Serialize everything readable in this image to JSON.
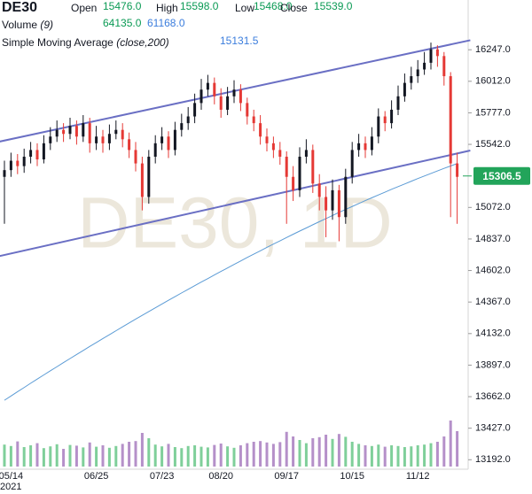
{
  "chart_data": {
    "type": "candlestick",
    "title": "DE30",
    "header": {
      "open_label": "Open",
      "open": "15476.0",
      "high_label": "High",
      "high": "15598.0",
      "low_label": "Low",
      "low": "15468.0",
      "close_label": "Close",
      "close": "15539.0",
      "volume_label": "Volume",
      "volume_params": "(9)",
      "volume_value_1": "64135.0",
      "volume_value_2": "61168.0",
      "sma_label": "Simple Moving Average",
      "sma_params": "(close,200)",
      "sma_value": "15131.5"
    },
    "watermark": "DE30, 1D",
    "year_label": "2021",
    "categories": [
      null,
      "05/14",
      null,
      null,
      null,
      null,
      null,
      null,
      null,
      null,
      null,
      null,
      null,
      null,
      "06/25",
      null,
      null,
      null,
      null,
      null,
      null,
      null,
      null,
      null,
      "07/23",
      null,
      null,
      null,
      null,
      null,
      null,
      null,
      null,
      "08/20",
      null,
      null,
      null,
      null,
      null,
      null,
      null,
      null,
      null,
      "09/17",
      null,
      null,
      null,
      null,
      null,
      null,
      null,
      null,
      null,
      "10/15",
      null,
      null,
      null,
      null,
      null,
      null,
      null,
      null,
      null,
      "11/12",
      null,
      null,
      null,
      null,
      null,
      null
    ],
    "open": [
      15300,
      15350,
      15420,
      15380,
      15450,
      15500,
      15430,
      15550,
      15600,
      15650,
      15620,
      15680,
      15600,
      15700,
      15550,
      15600,
      15550,
      15620,
      15650,
      15580,
      15500,
      15400,
      15150,
      15450,
      15550,
      15600,
      15500,
      15650,
      15700,
      15750,
      15850,
      15950,
      16000,
      15900,
      15800,
      15900,
      15950,
      15850,
      15750,
      15700,
      15600,
      15550,
      15500,
      15450,
      15300,
      15200,
      15450,
      15500,
      15250,
      15150,
      15050,
      15200,
      15000,
      15300,
      15500,
      15550,
      15500,
      15600,
      15750,
      15700,
      15800,
      15900,
      16000,
      16050,
      16100,
      16150,
      16250,
      16200,
      16050,
      15400
    ],
    "high": [
      15420,
      15480,
      15470,
      15510,
      15560,
      15550,
      15610,
      15670,
      15720,
      15700,
      15740,
      15720,
      15760,
      15740,
      15680,
      15650,
      15690,
      15720,
      15700,
      15630,
      15560,
      15450,
      15500,
      15610,
      15670,
      15640,
      15710,
      15770,
      15820,
      15920,
      16030,
      16060,
      16040,
      15960,
      15970,
      16020,
      15990,
      15890,
      15800,
      15760,
      15660,
      15600,
      15560,
      15490,
      15380,
      15520,
      15580,
      15540,
      15320,
      15230,
      15280,
      15240,
      15360,
      15560,
      15620,
      15600,
      15670,
      15810,
      15790,
      15870,
      15980,
      16070,
      16120,
      16170,
      16230,
      16300,
      16280,
      16230,
      16080,
      15480
    ],
    "low": [
      14950,
      15300,
      15320,
      15330,
      15400,
      15380,
      15400,
      15500,
      15560,
      15560,
      15580,
      15540,
      15560,
      15480,
      15500,
      15480,
      15500,
      15580,
      15520,
      15440,
      15340,
      15050,
      15100,
      15400,
      15500,
      15440,
      15460,
      15600,
      15650,
      15700,
      15800,
      15900,
      15840,
      15740,
      15760,
      15850,
      15790,
      15690,
      15640,
      15540,
      15490,
      15440,
      15390,
      14950,
      15120,
      15150,
      15400,
      15180,
      15050,
      14850,
      14980,
      14820,
      14950,
      15250,
      15450,
      15440,
      15460,
      15550,
      15640,
      15660,
      15760,
      15860,
      15950,
      16000,
      16060,
      16100,
      16120,
      15980,
      15000,
      14950
    ],
    "close": [
      15350,
      15420,
      15380,
      15450,
      15500,
      15430,
      15550,
      15600,
      15650,
      15620,
      15680,
      15600,
      15700,
      15550,
      15600,
      15550,
      15620,
      15650,
      15580,
      15500,
      15400,
      15150,
      15450,
      15550,
      15600,
      15500,
      15650,
      15700,
      15750,
      15850,
      15950,
      16000,
      15900,
      15800,
      15900,
      15950,
      15850,
      15750,
      15700,
      15600,
      15550,
      15500,
      15450,
      15300,
      15200,
      15450,
      15500,
      15250,
      15150,
      15050,
      15200,
      15000,
      15300,
      15500,
      15550,
      15500,
      15600,
      15750,
      15700,
      15800,
      15900,
      16000,
      16050,
      16100,
      16150,
      16250,
      16200,
      16050,
      15400,
      15300
    ],
    "up_color": "#131722",
    "down_color": "#e53935",
    "sma": {
      "color": "#5b9bd5",
      "values": [
        13635,
        13667,
        13699,
        13730,
        13762,
        13793,
        13824,
        13855,
        13885,
        13916,
        13946,
        13976,
        14006,
        14036,
        14065,
        14095,
        14124,
        14153,
        14182,
        14211,
        14240,
        14268,
        14296,
        14324,
        14352,
        14380,
        14407,
        14435,
        14462,
        14489,
        14516,
        14542,
        14569,
        14595,
        14621,
        14647,
        14673,
        14699,
        14724,
        14749,
        14774,
        14799,
        14823,
        14848,
        14872,
        14896,
        14919,
        14943,
        14966,
        14989,
        15012,
        15035,
        15057,
        15079,
        15101,
        15123,
        15144,
        15165,
        15186,
        15207,
        15227,
        15247,
        15267,
        15287,
        15306,
        15325,
        15344,
        15363,
        15381,
        15399
      ]
    },
    "volume": {
      "up_color": "#7fcf9a",
      "down_color": "#b590c9",
      "vlim": [
        0,
        150000
      ],
      "values": [
        62000,
        58000,
        71000,
        55000,
        60000,
        66000,
        52000,
        57000,
        63000,
        50000,
        61000,
        59000,
        54000,
        68000,
        56000,
        60000,
        53000,
        58000,
        64000,
        70000,
        72000,
        95000,
        80000,
        62000,
        57000,
        64000,
        55000,
        52000,
        58000,
        60000,
        56000,
        54000,
        61000,
        65000,
        57000,
        53000,
        60000,
        66000,
        70000,
        72000,
        68000,
        64000,
        69000,
        98000,
        85000,
        75000,
        66000,
        80000,
        83000,
        90000,
        78000,
        92000,
        84000,
        70000,
        64000,
        60000,
        58000,
        62000,
        56000,
        60000,
        58000,
        55000,
        57000,
        60000,
        62000,
        66000,
        70000,
        85000,
        130000,
        100000
      ]
    },
    "trendlines": {
      "color": "#6a6fc4",
      "lines": [
        {
          "start_index": -1,
          "start": 15560,
          "end_index": 71,
          "end": 16318
        },
        {
          "start_index": -1,
          "start": 14707,
          "end_index": 71,
          "end": 15496
        }
      ]
    },
    "last_price": 15306.5,
    "last_price_color": "#22a45a",
    "ylim": [
      13128,
      16400
    ],
    "yticks": [
      {
        "value": 13192,
        "label": "13192.0"
      },
      {
        "value": 13427,
        "label": "13427.0"
      },
      {
        "value": 13662,
        "label": "13662.0"
      },
      {
        "value": 13897,
        "label": "13897.0"
      },
      {
        "value": 14132,
        "label": "14132.0"
      },
      {
        "value": 14367,
        "label": "14367.0"
      },
      {
        "value": 14602,
        "label": "14602.0"
      },
      {
        "value": 14837,
        "label": "14837.0"
      },
      {
        "value": 15072,
        "label": "15072.0"
      },
      {
        "value": 15542,
        "label": "15542.0"
      },
      {
        "value": 15777,
        "label": "15777.0"
      },
      {
        "value": 16012,
        "label": "16012.0"
      },
      {
        "value": 16247,
        "label": "16247.0"
      }
    ]
  }
}
